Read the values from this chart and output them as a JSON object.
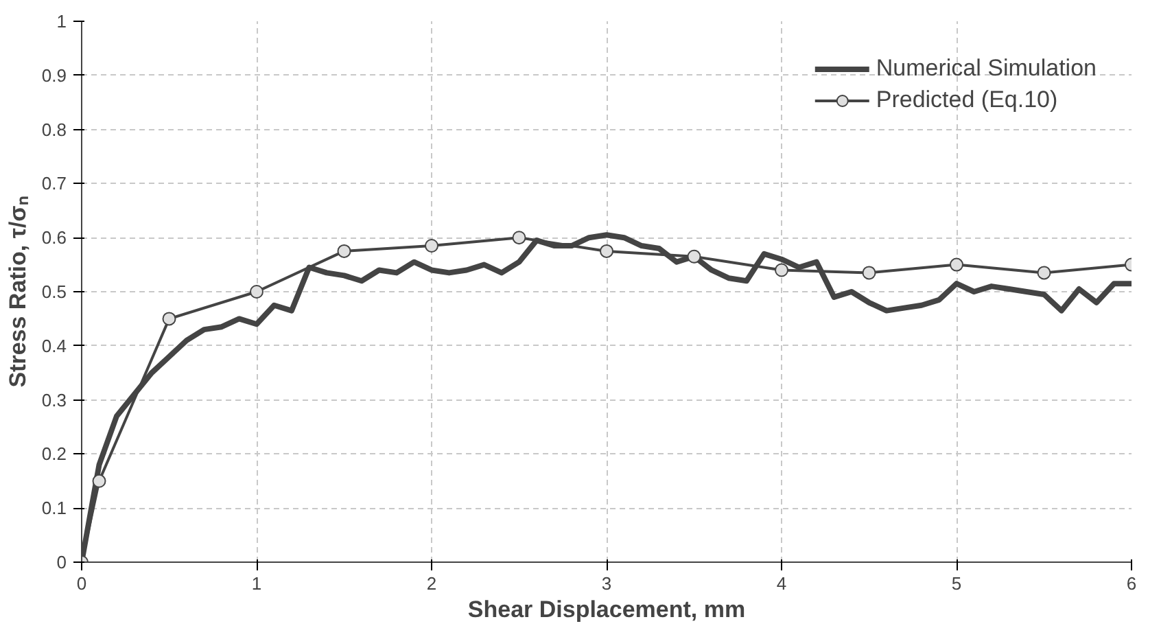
{
  "chart_data": {
    "type": "line",
    "xlabel": "Shear Displacement, mm",
    "ylabel": "Stress Ratio, τ/σₙ",
    "xlim": [
      0,
      6
    ],
    "ylim": [
      0,
      1
    ],
    "xticks": [
      0,
      1,
      2,
      3,
      4,
      5,
      6
    ],
    "yticks": [
      0,
      0.1,
      0.2,
      0.3,
      0.4,
      0.5,
      0.6,
      0.7,
      0.8,
      0.9,
      1
    ],
    "grid": true,
    "legend": "top right",
    "series": [
      {
        "name": "Numerical Simulation",
        "color": "#444444",
        "marker": "none",
        "x": [
          0,
          0.1,
          0.2,
          0.3,
          0.4,
          0.5,
          0.6,
          0.7,
          0.8,
          0.9,
          1.0,
          1.1,
          1.2,
          1.3,
          1.4,
          1.5,
          1.6,
          1.7,
          1.8,
          1.9,
          2.0,
          2.1,
          2.2,
          2.3,
          2.4,
          2.5,
          2.6,
          2.7,
          2.8,
          2.9,
          3.0,
          3.1,
          3.2,
          3.3,
          3.4,
          3.5,
          3.6,
          3.7,
          3.8,
          3.9,
          4.0,
          4.1,
          4.2,
          4.3,
          4.4,
          4.5,
          4.6,
          4.7,
          4.8,
          4.9,
          5.0,
          5.1,
          5.2,
          5.3,
          5.4,
          5.5,
          5.6,
          5.7,
          5.8,
          5.9,
          6.0
        ],
        "values": [
          0,
          0.18,
          0.27,
          0.31,
          0.35,
          0.38,
          0.41,
          0.43,
          0.435,
          0.45,
          0.44,
          0.475,
          0.465,
          0.545,
          0.535,
          0.53,
          0.52,
          0.54,
          0.535,
          0.555,
          0.54,
          0.535,
          0.54,
          0.55,
          0.535,
          0.555,
          0.595,
          0.585,
          0.585,
          0.6,
          0.605,
          0.6,
          0.585,
          0.58,
          0.555,
          0.565,
          0.54,
          0.525,
          0.52,
          0.57,
          0.56,
          0.545,
          0.555,
          0.49,
          0.5,
          0.48,
          0.465,
          0.47,
          0.475,
          0.485,
          0.515,
          0.5,
          0.51,
          0.505,
          0.5,
          0.495,
          0.465,
          0.505,
          0.48,
          0.515,
          0.515
        ]
      },
      {
        "name": "Predicted (Eq.10)",
        "color": "#444444",
        "marker": "circle",
        "x": [
          0,
          0.1,
          0.5,
          1,
          1.5,
          2,
          2.5,
          3,
          3.5,
          4,
          4.5,
          5,
          5.5,
          6
        ],
        "values": [
          0,
          0.15,
          0.45,
          0.5,
          0.575,
          0.585,
          0.6,
          0.575,
          0.565,
          0.54,
          0.535,
          0.55,
          0.535,
          0.55
        ]
      }
    ]
  }
}
